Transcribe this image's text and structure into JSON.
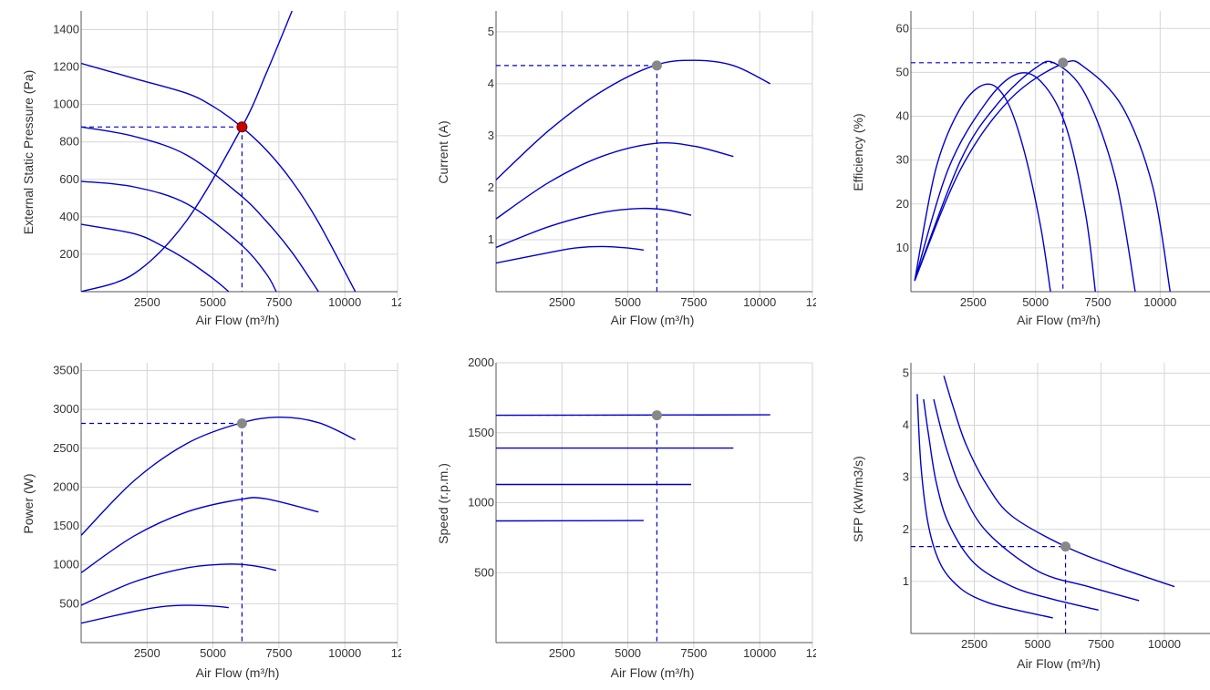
{
  "colors": {
    "curve": "#0000cc",
    "grid": "#d6d6d6",
    "axis": "#555555",
    "point_main": "#cc0000",
    "point": "#888888"
  },
  "chart_data": [
    {
      "id": "pressure",
      "type": "line",
      "xlabel": "Air Flow (m³/h)",
      "ylabel": "External Static Pressure (Pa)",
      "xlim": [
        0,
        12000
      ],
      "ylim": [
        0,
        1500
      ],
      "x_ticks": [
        "2500",
        "5000",
        "7500",
        "10000",
        "12"
      ],
      "y_ticks": [
        "200",
        "400",
        "600",
        "800",
        "1000",
        "1200",
        "1400"
      ],
      "grid": true,
      "series": [
        {
          "x": [
            0,
            2000,
            4000,
            5000,
            6000,
            7000,
            8000,
            9000,
            10400
          ],
          "y": [
            1220,
            1140,
            1060,
            990,
            890,
            760,
            590,
            370,
            0
          ]
        },
        {
          "x": [
            0,
            2000,
            4000,
            6000,
            7000,
            8000,
            9000
          ],
          "y": [
            880,
            830,
            730,
            520,
            380,
            210,
            0
          ]
        },
        {
          "x": [
            0,
            2000,
            4000,
            6000,
            7000,
            7400
          ],
          "y": [
            590,
            560,
            470,
            260,
            100,
            0
          ]
        },
        {
          "x": [
            0,
            2000,
            3000,
            4000,
            5000,
            5600
          ],
          "y": [
            360,
            310,
            250,
            170,
            70,
            0
          ]
        },
        {
          "x": [
            0,
            2000,
            4000,
            6100,
            7000,
            8000
          ],
          "y": [
            0,
            95,
            380,
            880,
            1160,
            1500
          ]
        }
      ],
      "operating_point": {
        "x": 6100,
        "y": 880
      }
    },
    {
      "id": "current",
      "type": "line",
      "xlabel": "Air Flow (m³/h)",
      "ylabel": "Current (A)",
      "xlim": [
        0,
        12000
      ],
      "ylim": [
        0,
        5.4
      ],
      "x_ticks": [
        "2500",
        "5000",
        "7500",
        "10000",
        "12"
      ],
      "y_ticks": [
        "1",
        "2",
        "3",
        "4",
        "5"
      ],
      "grid": true,
      "series": [
        {
          "x": [
            0,
            2000,
            4000,
            6000,
            7500,
            9000,
            10400
          ],
          "y": [
            2.15,
            3.1,
            3.85,
            4.35,
            4.45,
            4.35,
            4.0
          ]
        },
        {
          "x": [
            0,
            2000,
            4000,
            6000,
            7500,
            9000
          ],
          "y": [
            1.4,
            2.1,
            2.6,
            2.85,
            2.8,
            2.6
          ]
        },
        {
          "x": [
            0,
            2000,
            4000,
            5500,
            6500,
            7400
          ],
          "y": [
            0.85,
            1.25,
            1.52,
            1.6,
            1.57,
            1.47
          ]
        },
        {
          "x": [
            0,
            2000,
            3000,
            4000,
            5000,
            5600
          ],
          "y": [
            0.55,
            0.75,
            0.84,
            0.87,
            0.84,
            0.8
          ]
        }
      ],
      "operating_point": {
        "x": 6100,
        "y": 4.35
      }
    },
    {
      "id": "efficiency",
      "type": "line",
      "xlabel": "Air Flow (m³/h)",
      "ylabel": "Efficiency (%)",
      "xlim": [
        0,
        12000
      ],
      "ylim": [
        0,
        64
      ],
      "x_ticks": [
        "2500",
        "5000",
        "7500",
        "10000"
      ],
      "y_ticks": [
        "10",
        "20",
        "30",
        "40",
        "50",
        "60"
      ],
      "grid": true,
      "series": [
        {
          "x": [
            150,
            1000,
            2000,
            3000,
            3800,
            4500,
            5200,
            5600
          ],
          "y": [
            2.5,
            28,
            42,
            47.3,
            44,
            33,
            15,
            0
          ]
        },
        {
          "x": [
            150,
            1500,
            3000,
            4200,
            5200,
            6200,
            7000,
            7400
          ],
          "y": [
            2.5,
            28,
            43,
            49.5,
            48,
            38,
            18,
            0
          ]
        },
        {
          "x": [
            150,
            2000,
            3500,
            5000,
            5800,
            7000,
            8200,
            9000
          ],
          "y": [
            2.5,
            30,
            43,
            51,
            52,
            45,
            26,
            0
          ]
        },
        {
          "x": [
            150,
            2000,
            4000,
            6100,
            7000,
            8500,
            9700,
            10400
          ],
          "y": [
            2.5,
            28,
            44,
            52,
            51,
            42,
            24,
            0
          ]
        }
      ],
      "operating_point": {
        "x": 6100,
        "y": 52.2
      }
    },
    {
      "id": "power",
      "type": "line",
      "xlabel": "Air Flow (m³/h)",
      "ylabel": "Power (W)",
      "xlim": [
        0,
        12000
      ],
      "ylim": [
        0,
        3600
      ],
      "x_ticks": [
        "2500",
        "5000",
        "7500",
        "10000",
        "12"
      ],
      "y_ticks": [
        "500",
        "1000",
        "1500",
        "2000",
        "2500",
        "3000",
        "3500"
      ],
      "grid": true,
      "series": [
        {
          "x": [
            0,
            2000,
            4000,
            6000,
            7500,
            9000,
            10400
          ],
          "y": [
            1380,
            2080,
            2560,
            2820,
            2900,
            2830,
            2610
          ]
        },
        {
          "x": [
            0,
            2000,
            4000,
            6000,
            7000,
            9000
          ],
          "y": [
            900,
            1370,
            1680,
            1840,
            1850,
            1680
          ]
        },
        {
          "x": [
            0,
            2000,
            4000,
            5500,
            6500,
            7400
          ],
          "y": [
            480,
            780,
            960,
            1010,
            990,
            930
          ]
        },
        {
          "x": [
            0,
            2000,
            3000,
            4000,
            5000,
            5600
          ],
          "y": [
            250,
            400,
            460,
            480,
            470,
            450
          ]
        }
      ],
      "operating_point": {
        "x": 6100,
        "y": 2820
      }
    },
    {
      "id": "speed",
      "type": "line",
      "xlabel": "Air Flow (m³/h)",
      "ylabel": "Speed (r.p.m.)",
      "xlim": [
        0,
        12000
      ],
      "ylim": [
        0,
        2000
      ],
      "x_ticks": [
        "2500",
        "5000",
        "7500",
        "10000",
        "12"
      ],
      "y_ticks": [
        "500",
        "1000",
        "1500",
        "2000"
      ],
      "grid": true,
      "series": [
        {
          "x": [
            0,
            10400
          ],
          "y": [
            1625,
            1628
          ]
        },
        {
          "x": [
            0,
            9000
          ],
          "y": [
            1390,
            1390
          ]
        },
        {
          "x": [
            0,
            7400
          ],
          "y": [
            1130,
            1130
          ]
        },
        {
          "x": [
            0,
            5600
          ],
          "y": [
            870,
            872
          ]
        }
      ],
      "operating_point": {
        "x": 6100,
        "y": 1625
      }
    },
    {
      "id": "sfp",
      "type": "line",
      "xlabel": "Air Flow (m³/h)",
      "ylabel": "SFP (kW/m3/s)",
      "xlim": [
        0,
        11800
      ],
      "ylim": [
        0,
        5.2
      ],
      "x_ticks": [
        "2500",
        "5000",
        "7500",
        "10000"
      ],
      "y_ticks": [
        "1",
        "2",
        "3",
        "4",
        "5"
      ],
      "grid": true,
      "series": [
        {
          "x": [
            250,
            400,
            700,
            1200,
            2000,
            3000,
            4000,
            5600
          ],
          "y": [
            4.6,
            3.2,
            2.05,
            1.3,
            0.85,
            0.6,
            0.47,
            0.3
          ]
        },
        {
          "x": [
            500,
            700,
            1000,
            1500,
            2500,
            4000,
            5500,
            7400
          ],
          "y": [
            4.5,
            3.8,
            2.9,
            2.1,
            1.35,
            0.9,
            0.67,
            0.45
          ]
        },
        {
          "x": [
            900,
            1200,
            1500,
            2000,
            3000,
            5000,
            7000,
            9000
          ],
          "y": [
            4.5,
            3.9,
            3.4,
            2.75,
            1.95,
            1.2,
            0.9,
            0.63
          ]
        },
        {
          "x": [
            1300,
            1700,
            2200,
            3000,
            4000,
            6100,
            8000,
            10400
          ],
          "y": [
            4.95,
            4.3,
            3.6,
            2.85,
            2.25,
            1.67,
            1.3,
            0.9
          ]
        }
      ],
      "operating_point": {
        "x": 6100,
        "y": 1.67
      }
    }
  ]
}
